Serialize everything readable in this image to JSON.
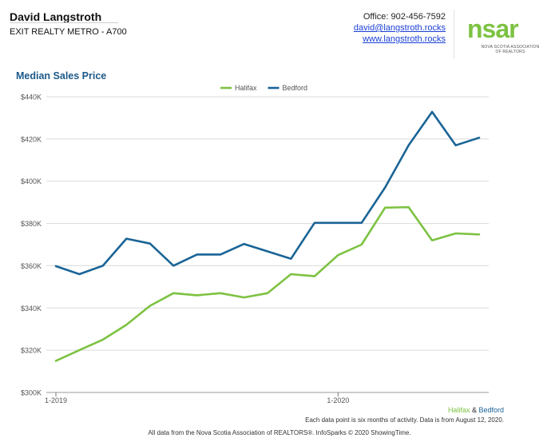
{
  "agent": {
    "name": "David Langstroth",
    "office": "EXIT REALTY METRO - A700"
  },
  "contact": {
    "phone": "Office: 902-456-7592",
    "email": "david@langstroth.rocks",
    "website": "www.langstroth.rocks"
  },
  "logo": {
    "mark": "nsar",
    "line1": "NOVA SCOTIA ASSOCIATION",
    "line2": "OF REALTORS"
  },
  "colors": {
    "halifax": "#7dc242",
    "bedford": "#1a6496",
    "title": "#1d5a8a",
    "grid": "#d9d9d9"
  },
  "chart_data": {
    "type": "line",
    "title": "Median Sales Price",
    "legend_position": "top-center",
    "ylim": [
      300000,
      440000
    ],
    "y_ticks": [
      "$300K",
      "$320K",
      "$340K",
      "$360K",
      "$380K",
      "$400K",
      "$420K",
      "$440K"
    ],
    "x_tick_labels": [
      {
        "index": 0,
        "label": "1-2019"
      },
      {
        "index": 12,
        "label": "1-2020"
      }
    ],
    "grid": true,
    "series": [
      {
        "name": "Halifax",
        "color": "#7dc242",
        "values": [
          315000,
          320000,
          325000,
          332000,
          341000,
          347000,
          346000,
          347000,
          345000,
          347000,
          356000,
          355000,
          365000,
          370000,
          387500,
          387700,
          372000,
          375300,
          374800
        ]
      },
      {
        "name": "Bedford",
        "color": "#1a6496",
        "values": [
          359800,
          356000,
          360000,
          372800,
          370500,
          360000,
          365300,
          365300,
          370300,
          366800,
          363300,
          380300,
          380300,
          380300,
          397000,
          417000,
          432800,
          417000,
          420600
        ]
      }
    ]
  },
  "footer": {
    "legend_halifax": "Halifax",
    "legend_amp": " & ",
    "legend_bedford": "Bedford",
    "note": "Each data point is six months of activity. Data is from August 12, 2020.",
    "source": "All data from the Nova Scotia Association of REALTORS®. InfoSparks © 2020 ShowingTime."
  }
}
